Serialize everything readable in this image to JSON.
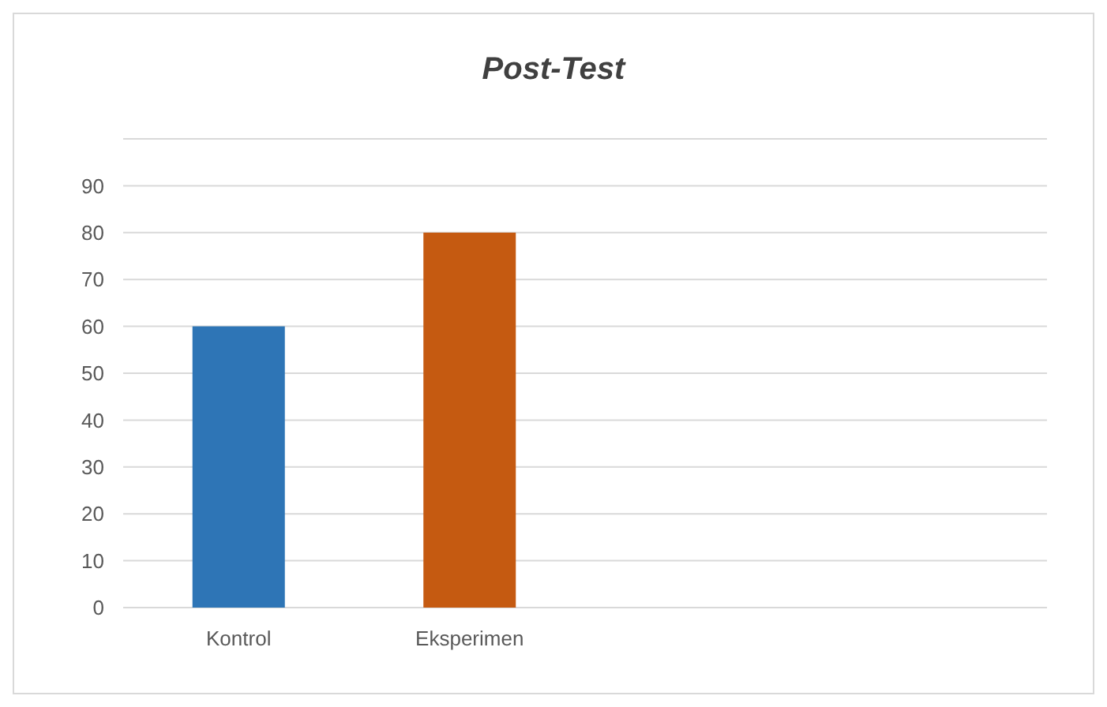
{
  "chart_data": {
    "type": "bar",
    "title": "Post-Test",
    "categories": [
      "Kontrol",
      "Eksperimen",
      null,
      null
    ],
    "values": [
      60,
      80,
      null,
      null
    ],
    "colors": [
      "#2e75b6",
      "#c55a11",
      null,
      null
    ],
    "ylim": [
      0,
      100
    ],
    "yticks": [
      0,
      10,
      20,
      30,
      40,
      50,
      60,
      70,
      80,
      90,
      {
        "value": 100,
        "label": null
      }
    ],
    "grid": "y"
  }
}
